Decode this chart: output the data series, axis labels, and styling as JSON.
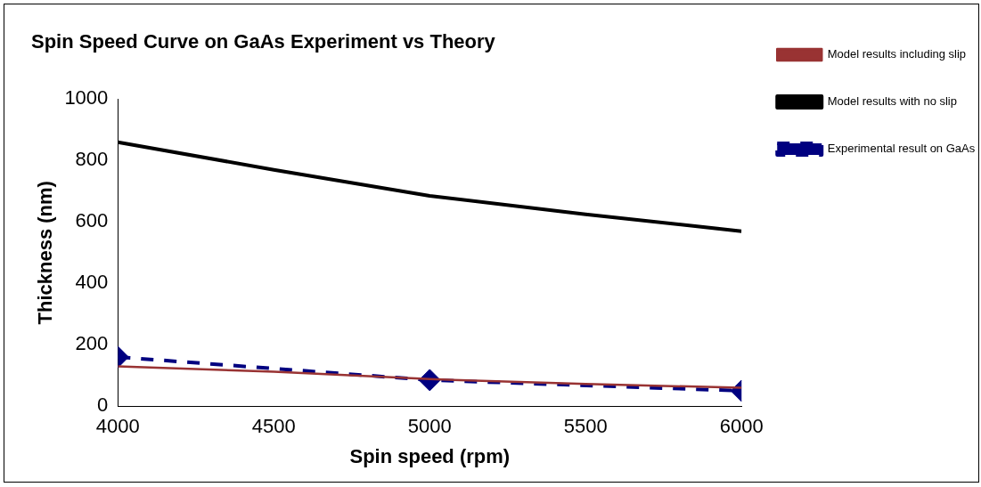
{
  "chart_data": {
    "type": "line",
    "title": "Spin Speed Curve on GaAs Experiment vs Theory",
    "xlabel": "Spin speed (rpm)",
    "ylabel": "Thickness (nm)",
    "xlim": [
      4000,
      6000
    ],
    "xticks": [
      4000,
      4500,
      5000,
      5500,
      6000
    ],
    "ylim": [
      0,
      1000
    ],
    "yticks": [
      0,
      200,
      400,
      600,
      800,
      1000
    ],
    "grid": false,
    "legend": "right",
    "series": [
      {
        "name": "Experimental result on GaAs",
        "color": "#000080",
        "x": [
          4000,
          5000,
          6000
        ],
        "values": [
          160,
          85,
          50
        ],
        "marker": "diamond",
        "line_style": "dashed"
      },
      {
        "name": "Model results including slip",
        "color": "#993333",
        "x": [
          4000,
          4500,
          5000,
          5500,
          6000
        ],
        "values": [
          130,
          112,
          88,
          72,
          60
        ],
        "marker": "none",
        "line_style": "solid"
      },
      {
        "name": "Model results with no slip",
        "color": "#000000",
        "x": [
          4000,
          4500,
          5000,
          5500,
          6000
        ],
        "values": [
          860,
          770,
          685,
          625,
          570
        ],
        "marker": "none",
        "line_style": "solid"
      }
    ]
  }
}
